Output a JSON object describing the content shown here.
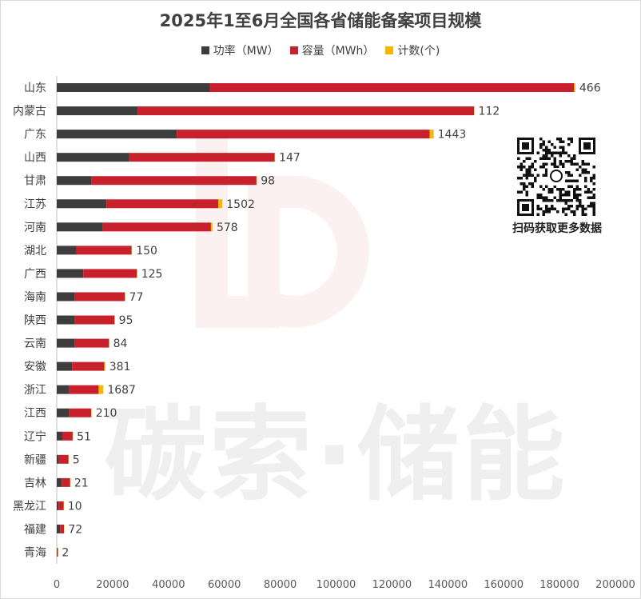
{
  "chart_data": {
    "type": "bar",
    "orientation": "horizontal",
    "stacked": true,
    "title": "2025年1至6月全国各省储能备案项目规模",
    "categories": [
      "山东",
      "内蒙古",
      "广东",
      "山西",
      "甘肃",
      "江苏",
      "河南",
      "湖北",
      "广西",
      "海南",
      "陕西",
      "云南",
      "安徽",
      "浙江",
      "江西",
      "辽宁",
      "新疆",
      "吉林",
      "黑龙江",
      "福建",
      "青海"
    ],
    "series": [
      {
        "name": "功率（MW）",
        "color": "#3d3d3d",
        "values": [
          54800,
          29000,
          43000,
          26000,
          12500,
          17800,
          16500,
          7000,
          9500,
          6500,
          6500,
          6500,
          5500,
          4500,
          4500,
          2000,
          800,
          1800,
          600,
          1200,
          100
        ]
      },
      {
        "name": "容量（MWh）",
        "color": "#c8202d",
        "values": [
          130400,
          120400,
          90500,
          52000,
          59000,
          40000,
          38700,
          19800,
          19200,
          17900,
          14200,
          12200,
          11500,
          10500,
          7800,
          3700,
          3400,
          3000,
          1900,
          1400,
          300
        ]
      },
      {
        "name": "计数(个)",
        "color": "#f5b800",
        "values": [
          466,
          112,
          1443,
          147,
          98,
          1502,
          578,
          150,
          125,
          77,
          95,
          84,
          381,
          1687,
          210,
          51,
          5,
          21,
          10,
          72,
          2
        ]
      }
    ],
    "xlim": [
      0,
      200000
    ],
    "xticks": [
      "0",
      "20000",
      "40000",
      "60000",
      "80000",
      "100000",
      "120000",
      "140000",
      "160000",
      "180000",
      "200000"
    ],
    "data_labels": [
      "466",
      "112",
      "1443",
      "147",
      "98",
      "1502",
      "578",
      "150",
      "125",
      "77",
      "95",
      "84",
      "381",
      "1687",
      "210",
      "51",
      "5",
      "21",
      "10",
      "72",
      "2"
    ],
    "legend_position": "top",
    "grid": false
  },
  "legend": {
    "items": [
      {
        "label": "功率（MW）",
        "color": "#3d3d3d"
      },
      {
        "label": "容量（MWh）",
        "color": "#c8202d"
      },
      {
        "label": "计数(个)",
        "color": "#f5b800"
      }
    ]
  },
  "watermark": {
    "text": "碳索·储能"
  },
  "qr": {
    "caption": "扫码获取更多数据"
  }
}
